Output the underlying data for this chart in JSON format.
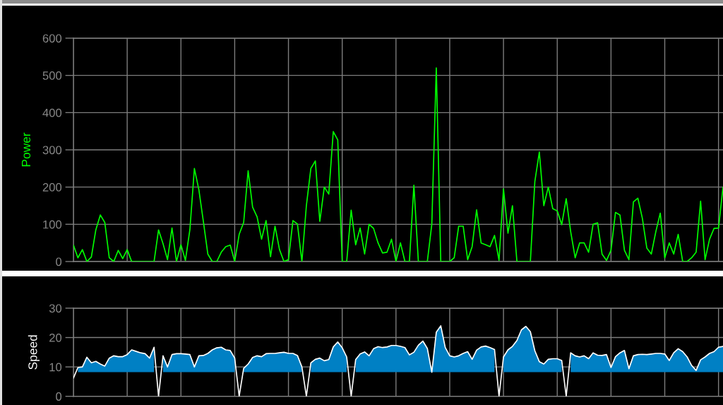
{
  "chart_data": [
    {
      "type": "line",
      "ylabel": "Power",
      "categories": [
        null,
        null,
        null,
        null,
        null,
        null,
        null,
        null,
        null,
        null,
        null,
        null,
        null,
        null,
        null,
        null,
        null,
        null,
        null,
        null,
        null,
        null,
        null,
        null,
        null,
        null,
        null,
        null,
        null,
        null,
        null,
        null,
        null,
        null,
        null,
        null,
        null,
        null,
        null,
        null,
        null,
        null,
        null,
        null,
        null,
        null,
        null,
        null,
        null,
        null,
        null,
        null,
        null,
        null,
        null,
        null,
        null,
        null,
        null,
        null,
        null,
        null,
        null,
        null,
        null,
        null,
        null,
        null,
        null,
        null,
        null,
        null,
        null,
        null,
        null,
        null,
        null,
        null,
        null,
        null,
        null,
        null,
        null,
        null,
        null,
        null,
        null,
        null,
        null,
        null,
        null,
        null,
        null,
        null,
        null,
        null,
        null,
        null,
        null,
        null,
        null,
        null,
        null,
        null,
        null,
        null,
        null,
        null,
        null,
        null,
        null,
        null,
        null,
        null,
        null,
        null,
        null,
        null,
        null,
        null,
        null,
        null,
        null,
        null,
        null,
        null,
        null,
        null,
        null,
        null,
        null,
        null,
        null,
        null,
        null,
        null,
        null,
        null,
        null,
        null,
        null,
        null,
        null,
        null,
        null,
        null
      ],
      "series": [
        {
          "color": "#00ff00",
          "values": [
            44,
            10,
            32,
            0,
            12,
            85,
            125,
            105,
            10,
            0,
            30,
            8,
            32,
            0,
            0,
            0,
            0,
            0,
            0,
            85,
            48,
            5,
            90,
            0,
            45,
            3,
            86,
            250,
            193,
            108,
            20,
            0,
            0,
            25,
            40,
            44,
            0,
            73,
            105,
            244,
            146,
            120,
            60,
            110,
            13,
            95,
            32,
            0,
            5,
            110,
            101,
            0,
            150,
            250,
            270,
            108,
            200,
            181,
            349,
            327,
            0,
            0,
            138,
            45,
            90,
            20,
            100,
            89,
            50,
            23,
            25,
            60,
            0,
            50,
            0,
            0,
            205,
            0,
            0,
            0,
            100,
            520,
            0,
            0,
            0,
            10,
            95,
            95,
            5,
            40,
            139,
            50,
            45,
            40,
            70,
            3,
            195,
            76,
            150,
            0,
            0,
            0,
            0,
            215,
            294,
            150,
            200,
            142,
            136,
            99,
            169,
            80,
            10,
            50,
            50,
            25,
            100,
            104,
            20,
            3,
            30,
            132,
            125,
            30,
            5,
            160,
            170,
            116,
            36,
            20,
            80,
            130,
            10,
            50,
            20,
            73,
            0,
            0,
            10,
            25,
            162,
            5,
            60,
            89,
            90,
            200
          ]
        }
      ],
      "ylim": [
        0,
        600
      ],
      "yticks": [
        0,
        100,
        200,
        300,
        400,
        500,
        600
      ],
      "grid": true,
      "tick_labels": "y"
    },
    {
      "type": "line",
      "ylabel": "Speed",
      "colors": [
        "#0080c4"
      ],
      "categories": [
        null,
        null,
        null,
        null,
        null,
        null,
        null,
        null,
        null,
        null,
        null,
        null,
        null,
        null,
        null,
        null,
        null,
        null,
        null,
        null,
        null,
        null,
        null,
        null,
        null,
        null,
        null,
        null,
        null,
        null,
        null,
        null,
        null,
        null,
        null,
        null,
        null,
        null,
        null,
        null,
        null,
        null,
        null,
        null,
        null,
        null,
        null,
        null,
        null,
        null,
        null,
        null,
        null,
        null,
        null,
        null,
        null,
        null,
        null,
        null,
        null,
        null,
        null,
        null,
        null,
        null,
        null,
        null,
        null,
        null,
        null,
        null,
        null,
        null,
        null,
        null,
        null,
        null,
        null,
        null,
        null,
        null,
        null,
        null,
        null,
        null,
        null,
        null,
        null,
        null,
        null,
        null,
        null,
        null,
        null,
        null,
        null,
        null,
        null,
        null,
        null,
        null,
        null,
        null,
        null,
        null,
        null,
        null,
        null,
        null,
        null,
        null,
        null,
        null,
        null,
        null,
        null,
        null,
        null,
        null,
        null,
        null,
        null,
        null,
        null,
        null,
        null,
        null,
        null,
        null,
        null,
        null,
        null,
        null,
        null,
        null,
        null,
        null,
        null,
        null,
        null,
        null,
        null,
        null,
        null,
        null
      ],
      "series": [
        {
          "color": "#ffffff",
          "values": [
            6.2,
            9.8,
            10,
            13.3,
            11.4,
            11.9,
            11,
            10.3,
            13,
            13.8,
            13.5,
            13.5,
            14.2,
            15.8,
            15.3,
            14.8,
            14.5,
            13,
            16.7,
            0,
            13.8,
            10,
            14.2,
            14.5,
            14.5,
            14.4,
            14.2,
            10,
            13.8,
            13.9,
            14.6,
            15.8,
            16.5,
            16.7,
            15.8,
            15.6,
            13,
            0,
            9.5,
            11,
            13.2,
            13.8,
            13.5,
            14.5,
            14.6,
            14.6,
            14.8,
            15,
            14.6,
            14.6,
            13.9,
            10,
            0,
            11.4,
            12.6,
            13,
            12.1,
            12.5,
            16.8,
            18.5,
            16.5,
            13.4,
            0,
            12.5,
            14.4,
            15.1,
            13.8,
            16.2,
            16.9,
            16.6,
            16.8,
            17.3,
            17.3,
            17,
            16.6,
            14.1,
            15,
            17.4,
            18.8,
            16.3,
            8.2,
            21.8,
            24,
            16.6,
            13.8,
            13.4,
            13.8,
            14.6,
            15.2,
            12.6,
            15.7,
            16.8,
            17.1,
            16.6,
            15.9,
            0,
            13.4,
            15.8,
            17,
            19,
            22.6,
            23.8,
            22,
            15.5,
            11.8,
            11,
            12.6,
            12.8,
            12.8,
            12.2,
            0,
            14.8,
            13.8,
            13.4,
            13.8,
            12.8,
            14.8,
            14,
            13.9,
            14.2,
            9.8,
            13.5,
            14.8,
            15.6,
            9.4,
            13.8,
            14.2,
            14.3,
            14.2,
            14.4,
            14.6,
            14.6,
            14.4,
            12.2,
            14.8,
            16.2,
            15.2,
            13.4,
            10.5,
            8.8,
            12.4,
            13.4,
            14.6,
            15.2,
            16.7,
            17
          ],
          "upper": [
            null,
            9.8,
            10,
            13.3,
            11.4,
            11.9,
            11,
            10.3,
            13,
            13.8,
            13.5,
            13.5,
            14.2,
            15.8,
            15.3,
            14.8,
            14.5,
            13,
            16.7,
            null,
            13.8,
            10,
            14.2,
            14.5,
            14.5,
            14.4,
            14.2,
            10,
            13.8,
            13.9,
            14.6,
            15.8,
            16.5,
            16.7,
            15.8,
            15.6,
            13,
            null,
            9.5,
            11,
            13.2,
            13.8,
            13.5,
            14.5,
            14.6,
            14.6,
            14.8,
            15,
            14.6,
            14.6,
            13.9,
            10,
            null,
            11.4,
            12.6,
            13,
            12.1,
            12.5,
            16.8,
            18.5,
            16.5,
            13.4,
            null,
            12.5,
            14.4,
            15.1,
            13.8,
            16.2,
            16.9,
            16.6,
            16.8,
            17.3,
            17.3,
            17,
            16.6,
            14.1,
            15,
            17.4,
            18.8,
            16.3,
            8.2,
            21.8,
            24,
            16.6,
            13.8,
            13.4,
            13.8,
            14.6,
            15.2,
            12.6,
            15.7,
            16.8,
            17.1,
            16.6,
            15.9,
            null,
            13.4,
            15.8,
            17,
            19,
            22.6,
            23.8,
            22,
            15.5,
            11.8,
            11,
            12.6,
            12.8,
            12.8,
            12.2,
            null,
            14.8,
            13.8,
            13.4,
            13.8,
            12.8,
            14.8,
            14,
            13.9,
            14.2,
            9.8,
            13.5,
            14.8,
            15.6,
            9.4,
            13.8,
            14.2,
            14.3,
            14.2,
            14.4,
            14.6,
            14.6,
            14.4,
            12.2,
            14.8,
            16.2,
            15.2,
            13.4,
            10.5,
            8.8,
            12.4,
            13.4,
            14.6,
            15.2,
            16.7,
            17
          ],
          "lower": [
            null,
            8.2,
            8.2,
            8.2,
            8.2,
            8.2,
            8.2,
            8.2,
            8.2,
            8.2,
            8.2,
            8.2,
            8.2,
            8.2,
            8.2,
            8.2,
            8.2,
            8.2,
            8.2,
            null,
            8.2,
            8.2,
            8.2,
            8.2,
            8.2,
            8.2,
            8.2,
            8.2,
            8.2,
            8.2,
            8.2,
            8.2,
            8.2,
            8.2,
            8.2,
            8.2,
            8.2,
            null,
            8.2,
            8.2,
            8.2,
            8.2,
            8.2,
            8.2,
            8.2,
            8.2,
            8.2,
            8.2,
            8.2,
            8.2,
            8.2,
            8.2,
            null,
            8.2,
            8.2,
            8.2,
            8.2,
            8.2,
            8.2,
            8.2,
            8.2,
            8.2,
            null,
            8.2,
            8.2,
            8.2,
            8.2,
            8.2,
            8.2,
            8.2,
            8.2,
            8.2,
            8.2,
            8.2,
            8.2,
            8.2,
            8.2,
            8.2,
            8.2,
            8.2,
            8.2,
            8.2,
            8.2,
            8.2,
            8.2,
            8.2,
            8.2,
            8.2,
            8.2,
            8.2,
            8.2,
            8.2,
            8.2,
            8.2,
            8.2,
            null,
            8.2,
            8.2,
            8.2,
            8.2,
            8.2,
            8.2,
            8.2,
            8.2,
            8.2,
            8.2,
            8.2,
            8.2,
            8.2,
            8.2,
            null,
            8.2,
            8.2,
            8.2,
            8.2,
            8.2,
            8.2,
            8.2,
            8.2,
            8.2,
            8.2,
            8.2,
            8.2,
            8.2,
            8.2,
            8.2,
            8.2,
            8.2,
            8.2,
            8.2,
            8.2,
            8.2,
            8.2,
            8.2,
            8.2,
            8.2,
            8.2,
            8.2,
            8.2,
            8.2,
            8.2,
            8.2,
            8.2,
            8.2,
            8.2,
            8.2
          ]
        }
      ],
      "ylim": [
        0,
        30
      ],
      "yticks": [
        0,
        10,
        20,
        30
      ],
      "grid": true,
      "tick_labels": "y"
    }
  ]
}
